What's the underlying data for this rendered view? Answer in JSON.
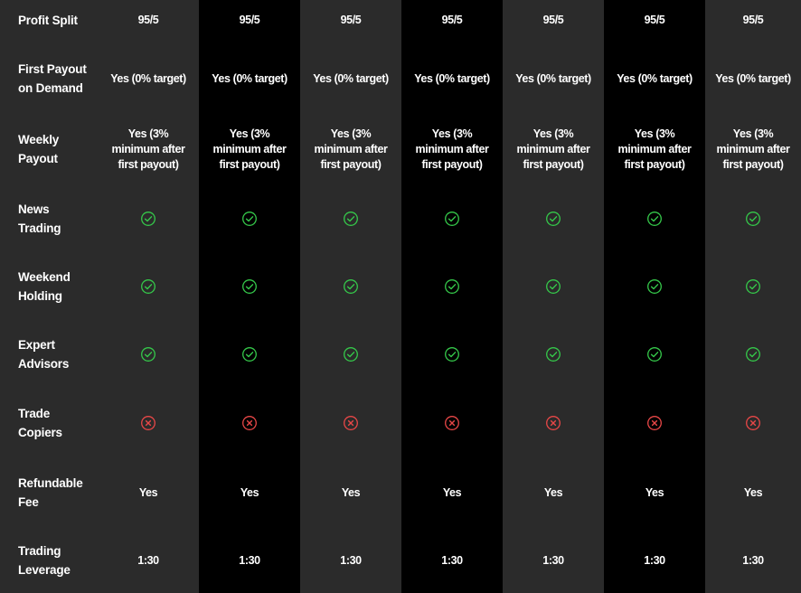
{
  "colors": {
    "light_col": "#2b2b2b",
    "dark_col": "#000000",
    "check": "#35c84a",
    "cross": "#e84747",
    "text": "#ffffff"
  },
  "rows": [
    {
      "key": "profit_split",
      "label": "Profit Split",
      "kind": "text",
      "value": "95/5"
    },
    {
      "key": "first_payout",
      "label": "First Payout on Demand",
      "kind": "text",
      "value": "Yes (0% target)"
    },
    {
      "key": "weekly_payout",
      "label": "Weekly Payout",
      "kind": "wrap",
      "value": "Yes (3% minimum after first payout)"
    },
    {
      "key": "news_trading",
      "label": "News Trading",
      "kind": "icon",
      "value": "check-icon"
    },
    {
      "key": "weekend_holding",
      "label": "Weekend Holding",
      "kind": "icon",
      "value": "check-icon"
    },
    {
      "key": "expert_advisors",
      "label": "Expert Advisors",
      "kind": "icon",
      "value": "check-icon"
    },
    {
      "key": "trade_copiers",
      "label": "Trade Copiers",
      "kind": "icon",
      "value": "cross-icon"
    },
    {
      "key": "refundable_fee",
      "label": "Refundable Fee",
      "kind": "text",
      "value": "Yes"
    },
    {
      "key": "trading_leverage",
      "label": "Trading Leverage",
      "kind": "text",
      "value": "1:30"
    }
  ],
  "plan_count": 7
}
